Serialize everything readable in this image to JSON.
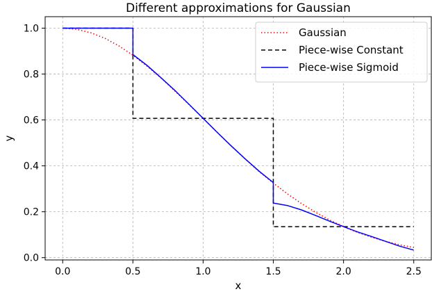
{
  "chart_data": {
    "type": "line",
    "title": "Different approximations for Gaussian",
    "xlabel": "x",
    "ylabel": "y",
    "xlim": [
      -0.125,
      2.625
    ],
    "ylim": [
      -0.01,
      1.05
    ],
    "xticks": [
      "0.0",
      "0.5",
      "1.0",
      "1.5",
      "2.0",
      "2.5"
    ],
    "yticks": [
      "0.0",
      "0.2",
      "0.4",
      "0.6",
      "0.8",
      "1.0"
    ],
    "grid": true,
    "legend_position": "top-right",
    "series": [
      {
        "name": "Gaussian",
        "color": "#ff0000",
        "style": "dotted",
        "x": [
          0.0,
          0.1,
          0.2,
          0.3,
          0.4,
          0.5,
          0.6,
          0.7,
          0.8,
          0.9,
          1.0,
          1.1,
          1.2,
          1.3,
          1.4,
          1.5,
          1.6,
          1.7,
          1.8,
          1.9,
          2.0,
          2.1,
          2.2,
          2.3,
          2.4,
          2.5
        ],
        "y": [
          1.0,
          0.995,
          0.98,
          0.956,
          0.923,
          0.882,
          0.835,
          0.783,
          0.726,
          0.667,
          0.607,
          0.546,
          0.487,
          0.43,
          0.375,
          0.325,
          0.278,
          0.236,
          0.198,
          0.164,
          0.135,
          0.11,
          0.089,
          0.071,
          0.056,
          0.044
        ]
      },
      {
        "name": "Piece-wise Constant",
        "color": "#000000",
        "style": "dashed",
        "x": [
          0.0,
          0.5,
          0.5,
          1.5,
          1.5,
          2.5
        ],
        "y": [
          1.0,
          1.0,
          0.607,
          0.607,
          0.135,
          0.135
        ]
      },
      {
        "name": "Piece-wise Sigmoid",
        "color": "#0000ff",
        "style": "solid",
        "x": [
          0.0,
          0.5,
          0.5,
          0.6,
          0.7,
          0.8,
          0.9,
          1.0,
          1.1,
          1.2,
          1.3,
          1.4,
          1.5,
          1.5,
          1.6,
          1.7,
          1.8,
          1.9,
          2.0,
          2.1,
          2.2,
          2.3,
          2.4,
          2.5
        ],
        "y": [
          1.0,
          1.0,
          0.885,
          0.838,
          0.784,
          0.728,
          0.668,
          0.607,
          0.546,
          0.487,
          0.43,
          0.376,
          0.327,
          0.238,
          0.227,
          0.208,
          0.184,
          0.159,
          0.135,
          0.112,
          0.092,
          0.071,
          0.05,
          0.033
        ]
      }
    ]
  }
}
